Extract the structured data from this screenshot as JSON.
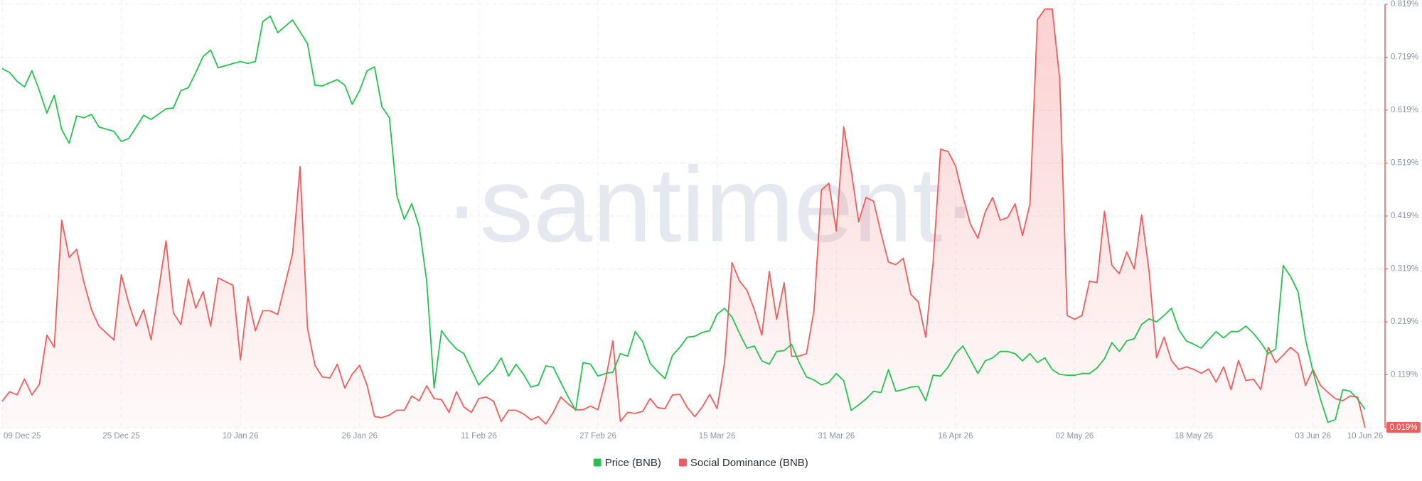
{
  "chart_data": {
    "type": "line",
    "watermark": "·santiment·",
    "xlim": [
      0,
      183
    ],
    "xticks": [
      {
        "value": 0,
        "label": "09 Dec 25"
      },
      {
        "value": 16,
        "label": "25 Dec 25"
      },
      {
        "value": 32,
        "label": "10 Jan 26"
      },
      {
        "value": 48,
        "label": "26 Jan 26"
      },
      {
        "value": 64,
        "label": "11 Feb 26"
      },
      {
        "value": 80,
        "label": "27 Feb 26"
      },
      {
        "value": 96,
        "label": "15 Mar 26"
      },
      {
        "value": 112,
        "label": "31 Mar 26"
      },
      {
        "value": 128,
        "label": "16 Apr 26"
      },
      {
        "value": 144,
        "label": "02 May 26"
      },
      {
        "value": 160,
        "label": "18 May 26"
      },
      {
        "value": 176,
        "label": "03 Jun 26"
      },
      {
        "value": 183,
        "label": "10 Jun 26"
      }
    ],
    "ylim": [
      0.019,
      0.819
    ],
    "yticks": [
      {
        "value": 0.019,
        "label": "0.019%"
      },
      {
        "value": 0.119,
        "label": "0.119%"
      },
      {
        "value": 0.219,
        "label": "0.219%"
      },
      {
        "value": 0.319,
        "label": "0.319%"
      },
      {
        "value": 0.419,
        "label": "0.419%"
      },
      {
        "value": 0.519,
        "label": "0.519%"
      },
      {
        "value": 0.619,
        "label": "0.619%"
      },
      {
        "value": 0.719,
        "label": "0.719%"
      },
      {
        "value": 0.819,
        "label": "0.819%"
      }
    ],
    "y2lim": [
      0,
      100
    ],
    "grid": true,
    "legend": "bottom",
    "x": [
      0,
      1,
      2,
      3,
      4,
      5,
      6,
      7,
      8,
      9,
      10,
      11,
      12,
      13,
      15,
      16,
      17,
      18,
      19,
      20,
      22,
      23,
      24,
      25,
      26,
      27,
      28,
      29,
      31,
      32,
      33,
      34,
      35,
      36,
      37,
      39,
      40,
      41,
      42,
      43,
      44,
      45,
      46,
      47,
      48,
      49,
      50,
      51,
      52,
      53,
      54,
      55,
      56,
      57,
      58,
      59,
      60,
      61,
      62,
      63,
      64,
      65,
      66,
      67,
      68,
      69,
      70,
      71,
      72,
      73,
      74,
      75,
      76,
      77,
      78,
      79,
      80,
      81,
      82,
      83,
      84,
      85,
      86,
      87,
      88,
      89,
      90,
      91,
      92,
      93,
      94,
      95,
      96,
      97,
      98,
      99,
      100,
      101,
      102,
      103,
      104,
      105,
      106,
      107,
      108,
      109,
      110,
      111,
      112,
      113,
      114,
      115,
      116,
      117,
      118,
      119,
      120,
      121,
      122,
      123,
      124,
      125,
      126,
      127,
      128,
      129,
      130,
      131,
      132,
      133,
      134,
      135,
      136,
      137,
      138,
      139,
      140,
      141,
      142,
      143,
      144,
      145,
      146,
      147,
      148,
      149,
      150,
      151,
      152,
      153,
      154,
      155,
      156,
      157,
      158,
      159,
      160,
      161,
      162,
      163,
      164,
      165,
      166,
      167,
      168,
      169,
      170,
      171,
      172,
      173,
      174,
      175,
      176,
      177,
      178,
      179,
      180,
      181,
      182,
      183
    ],
    "series": [
      {
        "name": "Price (BNB)",
        "color": "#26c24f",
        "axis": "y2",
        "values": [
          84.8,
          83.9,
          81.8,
          80.5,
          84.3,
          79.6,
          74.3,
          78.5,
          70.4,
          67.2,
          73.6,
          73.2,
          74.0,
          71.0,
          70.0,
          67.6,
          68.3,
          71.0,
          73.8,
          72.8,
          75.3,
          75.5,
          79.6,
          80.3,
          83.9,
          87.7,
          89.2,
          85.0,
          86.0,
          86.5,
          86.0,
          86.5,
          95.9,
          97.2,
          93.3,
          96.3,
          93.5,
          90.7,
          80.9,
          80.7,
          81.5,
          82.2,
          80.9,
          76.4,
          79.6,
          84.3,
          85.2,
          75.8,
          73.2,
          54.8,
          49.2,
          52.9,
          47.5,
          34.7,
          9.4,
          22.9,
          20.5,
          18.6,
          17.5,
          13.7,
          10.1,
          12.0,
          13.7,
          16.5,
          12.2,
          15.0,
          12.6,
          9.6,
          10.1,
          14.6,
          14.3,
          10.7,
          7.3,
          4.1,
          15.4,
          15.0,
          12.2,
          12.8,
          13.1,
          17.5,
          16.9,
          22.7,
          20.3,
          15.2,
          13.3,
          11.6,
          17.1,
          19.0,
          21.4,
          21.6,
          22.5,
          22.9,
          26.8,
          28.2,
          26.1,
          22.3,
          18.8,
          19.3,
          15.8,
          15.0,
          18.0,
          18.2,
          19.7,
          15.4,
          12.0,
          11.3,
          10.1,
          10.7,
          12.8,
          11.1,
          4.1,
          5.4,
          6.8,
          8.6,
          8.3,
          13.7,
          8.6,
          9.0,
          9.6,
          9.8,
          6.4,
          12.4,
          12.2,
          14.3,
          17.5,
          19.3,
          16.1,
          12.8,
          15.8,
          16.5,
          18.0,
          18.0,
          17.5,
          15.8,
          17.5,
          15.4,
          16.5,
          13.7,
          12.6,
          12.4,
          12.4,
          12.8,
          12.8,
          14.1,
          16.3,
          20.1,
          18.0,
          20.5,
          21.0,
          24.4,
          25.7,
          25.0,
          26.5,
          28.2,
          23.1,
          20.5,
          19.7,
          18.8,
          20.8,
          22.7,
          21.2,
          22.7,
          22.7,
          24.0,
          22.3,
          20.1,
          17.5,
          18.6,
          38.3,
          35.7,
          32.1,
          20.8,
          13.3,
          6.8,
          1.3,
          1.9,
          9.0,
          8.6,
          6.8,
          4.3
        ]
      },
      {
        "name": "Social Dominance (BNB)",
        "color": "#f25c5c",
        "area": true,
        "values": [
          0.069,
          0.087,
          0.081,
          0.111,
          0.081,
          0.101,
          0.194,
          0.171,
          0.411,
          0.341,
          0.356,
          0.293,
          0.242,
          0.211,
          0.185,
          0.308,
          0.254,
          0.211,
          0.242,
          0.185,
          0.372,
          0.236,
          0.214,
          0.3,
          0.245,
          0.276,
          0.211,
          0.302,
          0.288,
          0.147,
          0.267,
          0.202,
          0.24,
          0.24,
          0.233,
          0.348,
          0.512,
          0.207,
          0.137,
          0.115,
          0.113,
          0.139,
          0.094,
          0.12,
          0.137,
          0.099,
          0.04,
          0.038,
          0.043,
          0.052,
          0.052,
          0.079,
          0.07,
          0.098,
          0.074,
          0.072,
          0.048,
          0.087,
          0.058,
          0.048,
          0.074,
          0.077,
          0.069,
          0.031,
          0.052,
          0.052,
          0.045,
          0.034,
          0.04,
          0.026,
          0.048,
          0.077,
          0.064,
          0.053,
          0.053,
          0.06,
          0.053,
          0.108,
          0.183,
          0.031,
          0.048,
          0.046,
          0.05,
          0.074,
          0.057,
          0.055,
          0.081,
          0.082,
          0.057,
          0.04,
          0.058,
          0.082,
          0.055,
          0.142,
          0.331,
          0.296,
          0.279,
          0.242,
          0.194,
          0.314,
          0.224,
          0.293,
          0.154,
          0.154,
          0.159,
          0.24,
          0.468,
          0.481,
          0.391,
          0.587,
          0.505,
          0.408,
          0.454,
          0.447,
          0.387,
          0.332,
          0.327,
          0.339,
          0.271,
          0.257,
          0.19,
          0.331,
          0.545,
          0.541,
          0.514,
          0.456,
          0.404,
          0.377,
          0.427,
          0.454,
          0.411,
          0.416,
          0.442,
          0.382,
          0.442,
          0.79,
          0.81,
          0.81,
          0.677,
          0.231,
          0.224,
          0.231,
          0.296,
          0.293,
          0.428,
          0.326,
          0.31,
          0.351,
          0.319,
          0.421,
          0.314,
          0.151,
          0.19,
          0.146,
          0.129,
          0.134,
          0.129,
          0.122,
          0.13,
          0.105,
          0.134,
          0.091,
          0.146,
          0.108,
          0.111,
          0.091,
          0.171,
          0.142,
          0.156,
          0.171,
          0.159,
          0.099,
          0.129,
          0.099,
          0.086,
          0.074,
          0.07,
          0.079,
          0.077,
          0.019
        ]
      }
    ]
  }
}
